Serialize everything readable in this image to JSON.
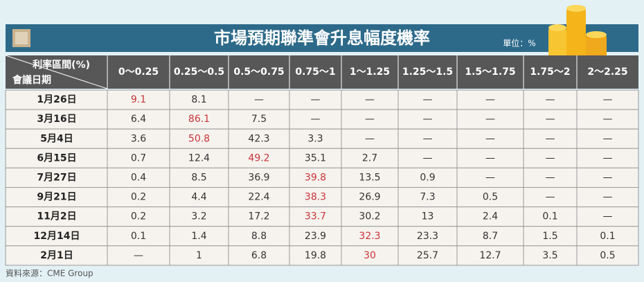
{
  "header": {
    "title": "市場預期聯準會升息幅度機率",
    "unit": "單位：%"
  },
  "table": {
    "corner_top": "利率區間(%)",
    "corner_bottom": "會議日期",
    "columns": [
      "0～0.25",
      "0.25～0.5",
      "0.5～0.75",
      "0.75～1",
      "1～1.25",
      "1.25～1.5",
      "1.5～1.75",
      "1.75～2",
      "2～2.25"
    ],
    "rows": [
      {
        "date": "1月26日",
        "cells": [
          9.1,
          8.1,
          "—",
          "—",
          "—",
          "—",
          "—",
          "—",
          "—"
        ],
        "highlight_column": 0
      },
      {
        "date": "3月16日",
        "cells": [
          6.4,
          86.1,
          7.5,
          "—",
          "—",
          "—",
          "—",
          "—",
          "—"
        ],
        "highlight_column": 1
      },
      {
        "date": "5月4日",
        "cells": [
          3.6,
          50.8,
          42.3,
          3.3,
          "—",
          "—",
          "—",
          "—",
          "—"
        ],
        "highlight_column": 1
      },
      {
        "date": "6月15日",
        "cells": [
          0.7,
          12.4,
          49.2,
          35.1,
          2.7,
          "—",
          "—",
          "—",
          "—"
        ],
        "highlight_column": 2
      },
      {
        "date": "7月27日",
        "cells": [
          0.4,
          8.5,
          36.9,
          39.8,
          13.5,
          0.9,
          "—",
          "—",
          "—"
        ],
        "highlight_column": 3
      },
      {
        "date": "9月21日",
        "cells": [
          0.2,
          4.4,
          22.4,
          38.3,
          26.9,
          7.3,
          0.5,
          "—",
          "—"
        ],
        "highlight_column": 3
      },
      {
        "date": "11月2日",
        "cells": [
          0.2,
          3.2,
          17.2,
          33.7,
          30.2,
          13,
          2.4,
          0.1,
          "—"
        ],
        "highlight_column": 3
      },
      {
        "date": "12月14日",
        "cells": [
          0.1,
          1.4,
          8.8,
          23.9,
          32.3,
          23.3,
          8.7,
          1.5,
          0.1
        ],
        "highlight_column": 4
      },
      {
        "date": "2月1日",
        "cells": [
          "—",
          1,
          6.8,
          19.8,
          30,
          25.7,
          12.7,
          3.5,
          0.5
        ],
        "highlight_column": 4
      }
    ]
  },
  "footer": {
    "source": "資料來源：CME Group"
  }
}
